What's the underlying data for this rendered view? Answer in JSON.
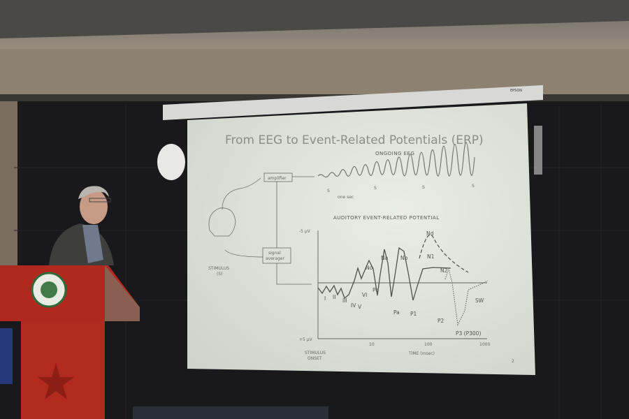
{
  "slide": {
    "title": "From EEG to Event-Related Potentials (ERP)",
    "ongoing_label": "ONGOING EEG",
    "amplifier_label": "amplifier",
    "one_sec_label": "one sec",
    "stim_marker": "S",
    "erp_label": "AUDITORY EVENT-RELATED POTENTIAL",
    "averager_label_1": "signal",
    "averager_label_2": "averager",
    "stimulus_label_1": "STIMULUS",
    "stimulus_label_2": "(S)",
    "y_top": "-5 μV",
    "y_bottom": "+5 μV",
    "x_ticks": [
      "10",
      "100",
      "1000"
    ],
    "x_label": "TIME (msec)",
    "onset_label_1": "STIMULUS",
    "onset_label_2": "ONSET",
    "peaks": [
      "I",
      "II",
      "III",
      "IV",
      "V",
      "VI",
      "No",
      "Po",
      "Na",
      "Pa",
      "Nb",
      "P1",
      "N1",
      "Nd",
      "N2",
      "P2",
      "P3 (P300)",
      "SW"
    ],
    "page_number": "2"
  },
  "screen_brand": "EPSON",
  "colors": {
    "slide_bg": "#e2e6dc",
    "wall": "#1a1a1c",
    "podium": "#b0281e"
  }
}
